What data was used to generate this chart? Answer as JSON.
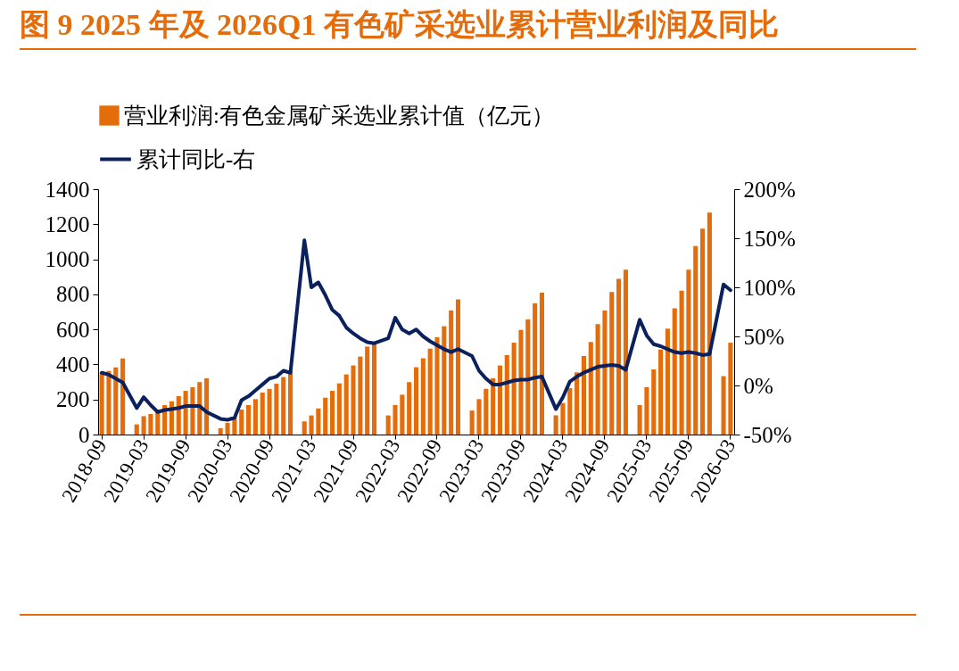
{
  "chart_data": {
    "type": "bar",
    "title": "图 9 2025 年及 2026Q1 有色矿采选业累计营业利润及同比",
    "categories": [
      "2018-09",
      null,
      null,
      null,
      null,
      null,
      "2019-03",
      null,
      null,
      null,
      null,
      null,
      "2019-09",
      null,
      null,
      null,
      null,
      null,
      "2020-03",
      null,
      null,
      null,
      null,
      null,
      "2020-09",
      null,
      null,
      null,
      null,
      null,
      "2021-03",
      null,
      null,
      null,
      null,
      null,
      "2021-09",
      null,
      null,
      null,
      null,
      null,
      "2022-03",
      null,
      null,
      null,
      null,
      null,
      "2022-09",
      null,
      null,
      null,
      null,
      null,
      "2023-03",
      null,
      null,
      null,
      null,
      null,
      "2023-09",
      null,
      null,
      null,
      null,
      null,
      "2024-03",
      null,
      null,
      null,
      null,
      null,
      "2024-09",
      null,
      null,
      null,
      null,
      null,
      "2025-03",
      null,
      null,
      null,
      null,
      null,
      "2025-09",
      null,
      null,
      null,
      null,
      null,
      "2026-03"
    ],
    "series": [
      {
        "name": "营业利润:有色金属矿采选业累计值（亿元）",
        "color": "#e46c0a",
        "values": [
          356,
          363,
          383,
          434,
          null,
          58,
          105,
          117,
          143,
          168,
          190,
          219,
          249,
          270,
          299,
          321,
          null,
          36,
          67,
          100,
          143,
          168,
          202,
          239,
          260,
          290,
          328,
          363,
          null,
          75,
          109,
          149,
          210,
          249,
          292,
          343,
          394,
          445,
          502,
          515,
          null,
          109,
          168,
          227,
          299,
          384,
          435,
          490,
          555,
          618,
          708,
          771,
          null,
          137,
          202,
          261,
          321,
          394,
          453,
          524,
          597,
          657,
          748,
          810,
          null,
          109,
          180,
          265,
          355,
          448,
          528,
          630,
          708,
          813,
          889,
          940,
          null,
          168,
          270,
          372,
          485,
          604,
          720,
          821,
          940,
          1076,
          1175,
          1266,
          null,
          333,
          524
        ]
      },
      {
        "name": "累计同比-右",
        "type": "line",
        "axis": "y2",
        "color": "#0a215e",
        "values": [
          13,
          11,
          7,
          3,
          null,
          -23,
          -12,
          -20,
          -27,
          -25,
          -24,
          -23,
          -21,
          -21,
          -21,
          -27,
          null,
          -34,
          -35,
          -33,
          -15,
          -11,
          -5,
          1,
          7,
          9,
          15,
          13,
          null,
          148,
          100,
          105,
          92,
          77,
          71,
          59,
          53,
          48,
          44,
          43,
          null,
          48,
          69,
          57,
          53,
          57,
          50,
          45,
          41,
          37,
          34,
          37,
          null,
          30,
          15,
          7,
          1,
          1,
          3,
          5,
          6,
          6,
          8,
          9,
          null,
          -24,
          -12,
          4,
          9,
          13,
          16,
          19,
          20,
          21,
          20,
          16,
          null,
          67,
          51,
          42,
          40,
          37,
          34,
          33,
          34,
          33,
          31,
          32,
          null,
          103,
          97
        ]
      }
    ],
    "ylim": [
      0,
      1400
    ],
    "yticks": [
      0,
      200,
      400,
      600,
      800,
      1000,
      1200,
      1400
    ],
    "y2lim": [
      -50,
      200
    ],
    "y2ticks": [
      {
        "value": -50,
        "label": "-50%"
      },
      {
        "value": 0,
        "label": "0%"
      },
      {
        "value": 50,
        "label": "50%"
      },
      {
        "value": 100,
        "label": "100%"
      },
      {
        "value": 150,
        "label": "150%"
      },
      {
        "value": 200,
        "label": "200%"
      }
    ],
    "legend": "top",
    "grid": false
  }
}
